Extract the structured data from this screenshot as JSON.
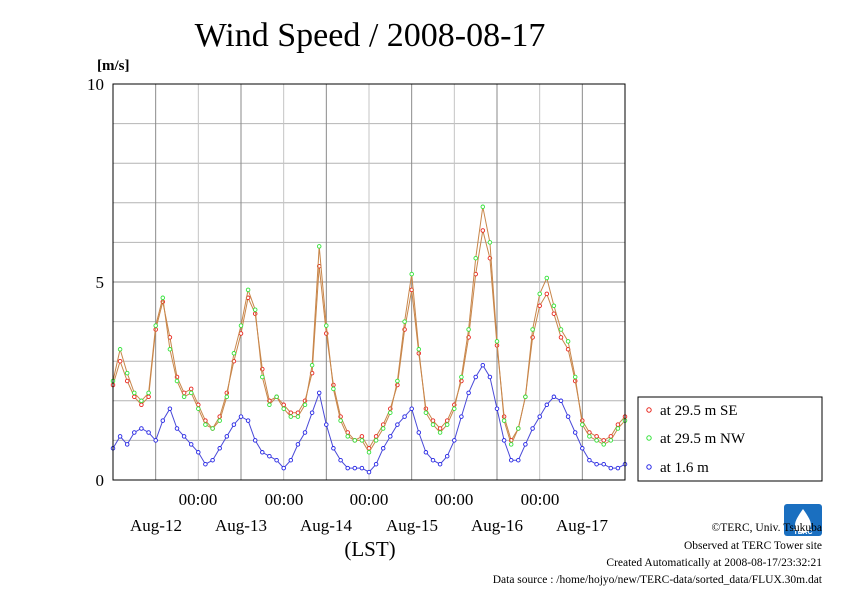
{
  "chart_data": {
    "type": "line",
    "title": "Wind Speed / 2008-08-17",
    "ylabel": "[m/s]",
    "xlabel": "(LST)",
    "ylim": [
      0,
      10
    ],
    "yticks": [
      "0",
      "5",
      "10"
    ],
    "grid": true,
    "legend_position": "right",
    "x_time_labels": [
      "00:00",
      "00:00",
      "00:00",
      "00:00",
      "00:00"
    ],
    "x_day_labels": [
      "Aug-12",
      "Aug-13",
      "Aug-14",
      "Aug-15",
      "Aug-16",
      "Aug-17"
    ],
    "x_unit": "hours since 2008-08-11 12:00 LST",
    "x_range": [
      0,
      144
    ],
    "series": [
      {
        "name": "at 29.5 m SE",
        "color": "#e8261e",
        "x": [
          0,
          2,
          4,
          6,
          8,
          10,
          12,
          14,
          16,
          18,
          20,
          22,
          24,
          26,
          28,
          30,
          32,
          34,
          36,
          38,
          40,
          42,
          44,
          46,
          48,
          50,
          52,
          54,
          56,
          58,
          60,
          62,
          64,
          66,
          68,
          70,
          72,
          74,
          76,
          78,
          80,
          82,
          84,
          86,
          88,
          90,
          92,
          94,
          96,
          98,
          100,
          102,
          104,
          106,
          108,
          110,
          112,
          114,
          116,
          118,
          120,
          122,
          124,
          126,
          128,
          130,
          132,
          134,
          136,
          138,
          140,
          142,
          144
        ],
        "values": [
          2.4,
          3.0,
          2.5,
          2.1,
          1.9,
          2.1,
          3.8,
          4.5,
          3.6,
          2.6,
          2.2,
          2.3,
          1.9,
          1.5,
          1.3,
          1.6,
          2.2,
          3.0,
          3.7,
          4.6,
          4.2,
          2.8,
          2.0,
          2.1,
          1.9,
          1.7,
          1.7,
          2.0,
          2.7,
          5.4,
          3.7,
          2.4,
          1.6,
          1.2,
          1.0,
          1.1,
          0.8,
          1.1,
          1.4,
          1.8,
          2.4,
          3.8,
          4.8,
          3.2,
          1.8,
          1.5,
          1.3,
          1.5,
          1.9,
          2.5,
          3.6,
          5.2,
          6.3,
          5.6,
          3.4,
          1.6,
          1.0,
          1.3,
          2.1,
          3.6,
          4.4,
          4.7,
          4.2,
          3.6,
          3.3,
          2.5,
          1.5,
          1.2,
          1.1,
          1.0,
          1.1,
          1.4,
          1.6
        ]
      },
      {
        "name": "at 29.5 m NW",
        "color": "#34e33a",
        "x": [
          0,
          2,
          4,
          6,
          8,
          10,
          12,
          14,
          16,
          18,
          20,
          22,
          24,
          26,
          28,
          30,
          32,
          34,
          36,
          38,
          40,
          42,
          44,
          46,
          48,
          50,
          52,
          54,
          56,
          58,
          60,
          62,
          64,
          66,
          68,
          70,
          72,
          74,
          76,
          78,
          80,
          82,
          84,
          86,
          88,
          90,
          92,
          94,
          96,
          98,
          100,
          102,
          104,
          106,
          108,
          110,
          112,
          114,
          116,
          118,
          120,
          122,
          124,
          126,
          128,
          130,
          132,
          134,
          136,
          138,
          140,
          142,
          144
        ],
        "values": [
          2.5,
          3.3,
          2.7,
          2.2,
          2.0,
          2.2,
          3.9,
          4.6,
          3.3,
          2.5,
          2.1,
          2.2,
          1.8,
          1.4,
          1.3,
          1.5,
          2.1,
          3.2,
          3.9,
          4.8,
          4.3,
          2.6,
          1.9,
          2.1,
          1.8,
          1.6,
          1.6,
          1.9,
          2.9,
          5.9,
          3.9,
          2.3,
          1.5,
          1.1,
          1.0,
          1.0,
          0.7,
          1.0,
          1.3,
          1.7,
          2.5,
          4.0,
          5.2,
          3.3,
          1.7,
          1.4,
          1.2,
          1.4,
          1.8,
          2.6,
          3.8,
          5.6,
          6.9,
          6.0,
          3.5,
          1.5,
          0.9,
          1.3,
          2.1,
          3.8,
          4.7,
          5.1,
          4.4,
          3.8,
          3.5,
          2.6,
          1.4,
          1.1,
          1.0,
          0.9,
          1.0,
          1.3,
          1.5
        ]
      },
      {
        "name": "at 1.6 m",
        "color": "#2626e6",
        "x": [
          0,
          2,
          4,
          6,
          8,
          10,
          12,
          14,
          16,
          18,
          20,
          22,
          24,
          26,
          28,
          30,
          32,
          34,
          36,
          38,
          40,
          42,
          44,
          46,
          48,
          50,
          52,
          54,
          56,
          58,
          60,
          62,
          64,
          66,
          68,
          70,
          72,
          74,
          76,
          78,
          80,
          82,
          84,
          86,
          88,
          90,
          92,
          94,
          96,
          98,
          100,
          102,
          104,
          106,
          108,
          110,
          112,
          114,
          116,
          118,
          120,
          122,
          124,
          126,
          128,
          130,
          132,
          134,
          136,
          138,
          140,
          142,
          144
        ],
        "values": [
          0.8,
          1.1,
          0.9,
          1.2,
          1.3,
          1.2,
          1.0,
          1.5,
          1.8,
          1.3,
          1.1,
          0.9,
          0.7,
          0.4,
          0.5,
          0.8,
          1.1,
          1.4,
          1.6,
          1.5,
          1.0,
          0.7,
          0.6,
          0.5,
          0.3,
          0.5,
          0.9,
          1.2,
          1.7,
          2.2,
          1.4,
          0.8,
          0.5,
          0.3,
          0.3,
          0.3,
          0.2,
          0.4,
          0.8,
          1.1,
          1.4,
          1.6,
          1.8,
          1.2,
          0.7,
          0.5,
          0.4,
          0.6,
          1.0,
          1.6,
          2.2,
          2.6,
          2.9,
          2.6,
          1.8,
          1.0,
          0.5,
          0.5,
          0.9,
          1.3,
          1.6,
          1.9,
          2.1,
          2.0,
          1.6,
          1.2,
          0.8,
          0.5,
          0.4,
          0.4,
          0.3,
          0.3,
          0.4
        ]
      }
    ]
  },
  "footer": {
    "copyright": "©TERC, Univ. Tsukuba",
    "observed": "Observed at TERC Tower site",
    "created": "Created Automatically at 2008-08-17/23:32:21",
    "source": "Data source : /home/hojyo/new/TERC-data/sorted_data/FLUX.30m.dat",
    "logo_text": "TERC"
  }
}
